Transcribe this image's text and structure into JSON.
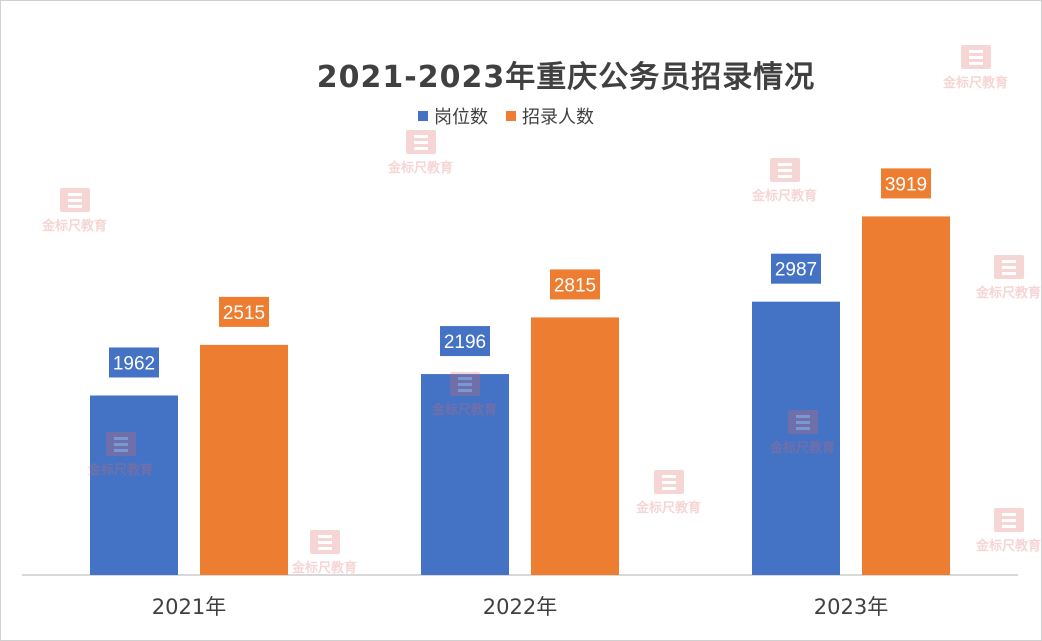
{
  "chart_data": {
    "type": "bar",
    "title": "2021-2023年重庆公务员招录情况",
    "categories": [
      "2021年",
      "2022年",
      "2023年"
    ],
    "series": [
      {
        "name": "岗位数",
        "values": [
          1962,
          2196,
          2987
        ],
        "color": "#4472C4"
      },
      {
        "name": "招录人数",
        "values": [
          2515,
          2815,
          3919
        ],
        "color": "#ED7D31"
      }
    ],
    "ylim": [
      0,
      4500
    ],
    "grid": false,
    "legend_position": "top-center",
    "data_labels": true
  },
  "watermark": {
    "text": "金标尺教育"
  }
}
